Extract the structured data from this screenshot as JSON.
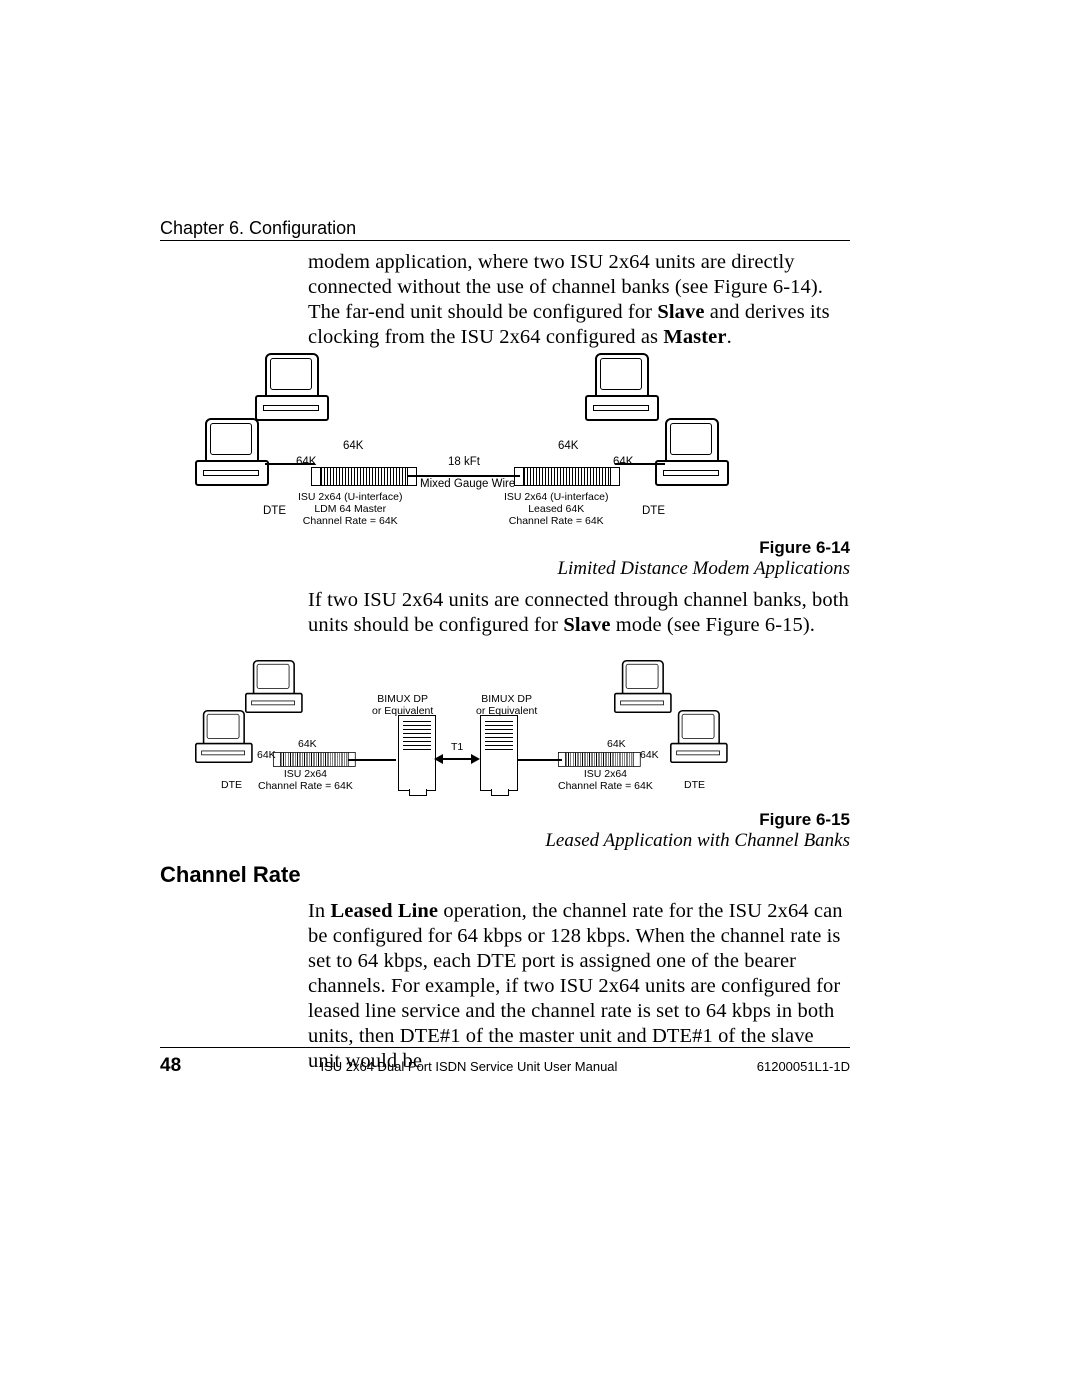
{
  "header": {
    "chapter": "Chapter 6.  Configuration"
  },
  "para1_html": "modem application, where two ISU 2x64 units are directly connected without the use of channel banks (see Figure 6-14).  The far-end unit should be configured for <b>Slave</b> and derives its clocking from the ISU 2x64 configured as <b>Master</b>.",
  "fig1": {
    "labels": {
      "rate_tl": "64K",
      "rate_bl": "64K",
      "rate_tr": "64K",
      "rate_br": "64K",
      "dist": "18 kFt",
      "wire": "Mixed Gauge Wire",
      "dte_l": "DTE",
      "dte_r": "DTE",
      "unit_l": "ISU 2x64 (U-interface)\nLDM 64 Master\nChannel Rate = 64K",
      "unit_r": "ISU 2x64 (U-interface)\nLeased 64K\nChannel Rate = 64K"
    },
    "caption_bold": "Figure 6-14",
    "caption_italic": "Limited Distance Modem Applications"
  },
  "para2_html": "If two ISU 2x64 units are connected through channel banks, both units should be configured for <b>Slave</b> mode (see Figure 6-15).",
  "fig2": {
    "labels": {
      "rate_tl": "64K",
      "rate_bl": "64K",
      "rate_tr": "64K",
      "rate_br": "64K",
      "bank_l": "BIMUX DP\nor Equivalent",
      "bank_r": "BIMUX DP\nor Equivalent",
      "t1": "T1",
      "dte_l": "DTE",
      "dte_r": "DTE",
      "unit_l": "ISU 2x64\nChannel Rate = 64K",
      "unit_r": "ISU 2x64\nChannel Rate = 64K"
    },
    "caption_bold": "Figure 6-15",
    "caption_italic": "Leased Application with Channel Banks"
  },
  "section": {
    "title": "Channel Rate"
  },
  "para3_html": "In <b>Leased Line</b> operation, the channel rate for the ISU 2x64 can be configured for 64 kbps or 128 kbps.  When the channel rate is set to 64 kbps, each DTE port is assigned one of the bearer channels.  For example, if two ISU 2x64 units are configured for leased line service and the channel rate is set to 64 kbps in both units, then DTE#1 of the master unit and DTE#1 of the slave unit would be",
  "footer": {
    "page": "48",
    "title": "ISU 2x64 Dual Port ISDN Service Unit User Manual",
    "docnum": "61200051L1-1D"
  },
  "style": {
    "body_font": "Times New Roman",
    "label_font": "Arial",
    "body_fontsize_pt": 15,
    "label_fontsize_pt": 9,
    "colors": {
      "text": "#000000",
      "bg": "#ffffff",
      "rule": "#000000"
    }
  }
}
